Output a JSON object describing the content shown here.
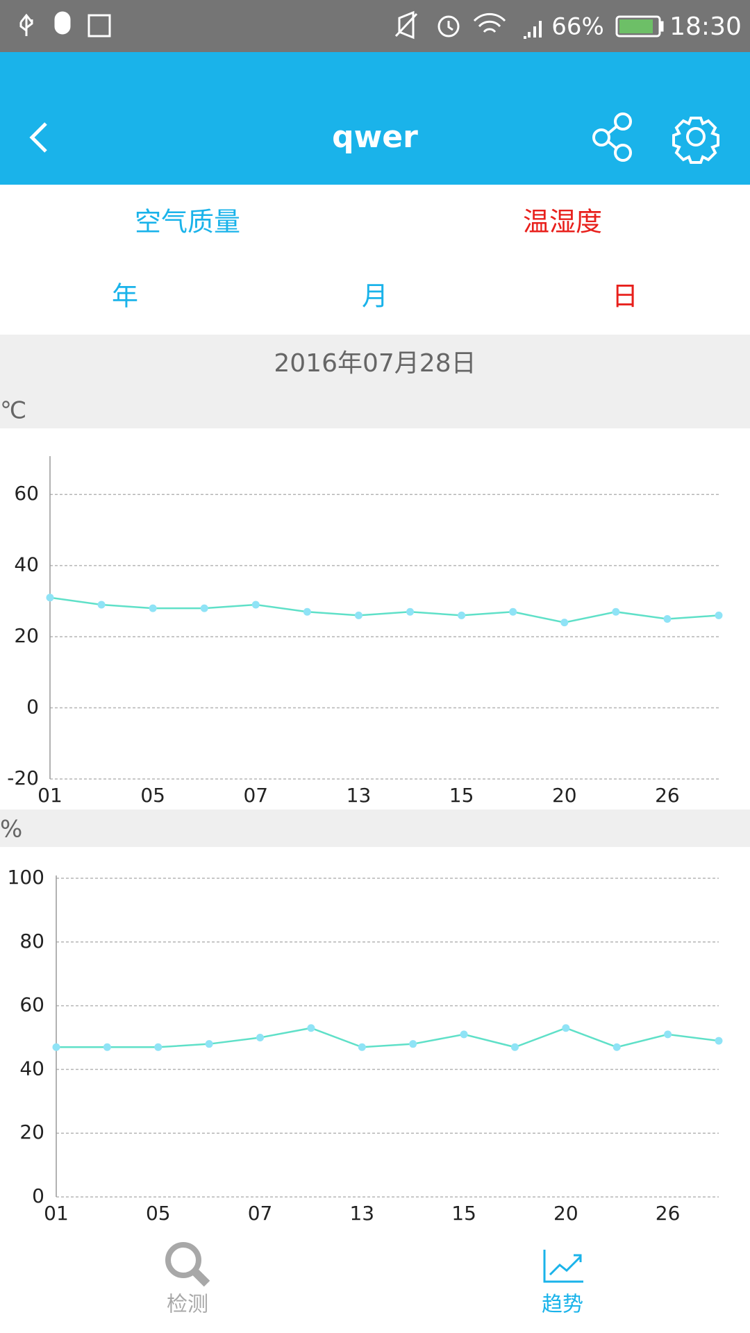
{
  "status_bar": {
    "battery": "66%",
    "time": "18:30"
  },
  "header": {
    "title": "qwer"
  },
  "data_tabs": {
    "items": [
      "空气质量",
      "温湿度"
    ],
    "selected": 1
  },
  "period_tabs": {
    "items": [
      "年",
      "月",
      "日"
    ],
    "selected": 2
  },
  "date": "2016年07月28日",
  "chart_data": [
    {
      "type": "line",
      "y_label": "℃",
      "categories": [
        "01",
        null,
        "05",
        null,
        "07",
        null,
        "13",
        null,
        "15",
        null,
        "20",
        null,
        "26",
        null
      ],
      "series": [
        {
          "color": "#5fe0c8",
          "marker_color": "#8fe3f6",
          "values": [
            31,
            29,
            28,
            28,
            29,
            27,
            26,
            27,
            26,
            27,
            24,
            27,
            25,
            26
          ]
        }
      ],
      "ylim": [
        -20,
        70
      ],
      "yticks": [
        -20,
        0,
        20,
        40,
        60
      ],
      "grid": true
    },
    {
      "type": "line",
      "y_label": "%",
      "categories": [
        "01",
        null,
        "05",
        null,
        "07",
        null,
        "13",
        null,
        "15",
        null,
        "20",
        null,
        "26",
        null
      ],
      "series": [
        {
          "color": "#5fe0c8",
          "marker_color": "#8fe3f6",
          "values": [
            47,
            47,
            47,
            48,
            50,
            53,
            47,
            48,
            51,
            47,
            53,
            47,
            51,
            49
          ]
        }
      ],
      "ylim": [
        0,
        100
      ],
      "yticks": [
        0,
        20,
        40,
        60,
        80,
        100
      ],
      "grid": true
    }
  ],
  "nav": {
    "items": [
      "检测",
      "趋势"
    ],
    "selected": 1
  }
}
